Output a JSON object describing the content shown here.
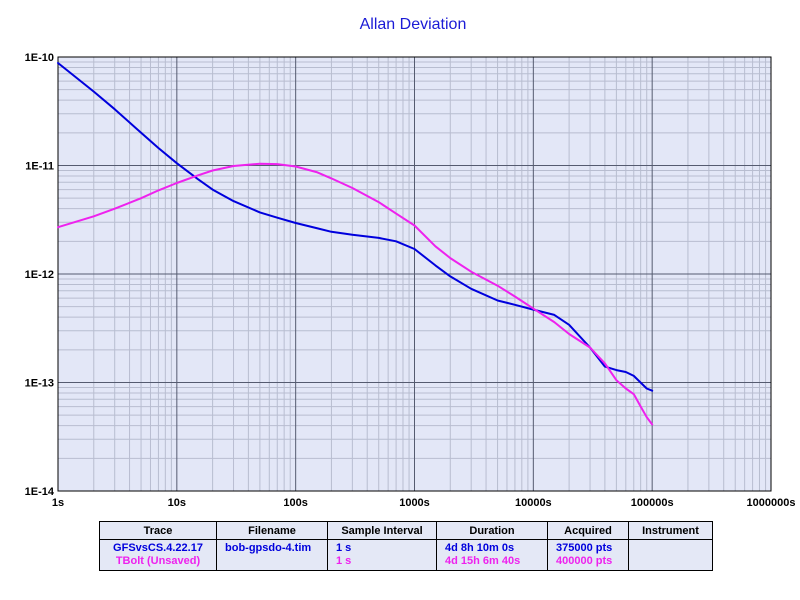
{
  "chart_data": {
    "type": "line",
    "title": "Allan Deviation",
    "xscale": "log",
    "yscale": "log",
    "xlim": [
      1,
      1000000
    ],
    "ylim": [
      1e-14,
      1e-10
    ],
    "grid": true,
    "x_tick_labels": [
      "1s",
      "10s",
      "100s",
      "1000s",
      "10000s",
      "100000s",
      "1000000s"
    ],
    "y_tick_labels": [
      "1E-14",
      "1E-13",
      "1E-12",
      "1E-11",
      "1E-10"
    ],
    "series": [
      {
        "name": "GFSvsCS.4.22.17",
        "color": "#0000dd",
        "x": [
          1,
          2,
          3,
          5,
          7,
          10,
          15,
          20,
          30,
          50,
          70,
          100,
          150,
          200,
          300,
          500,
          700,
          1000,
          1500,
          2000,
          3000,
          5000,
          7000,
          10000,
          15000,
          20000,
          30000,
          40000,
          50000,
          60000,
          70000,
          90000,
          100000
        ],
        "y": [
          8.8e-11,
          4.8e-11,
          3.3e-11,
          2e-11,
          1.45e-11,
          1.05e-11,
          7.5e-12,
          6e-12,
          4.7e-12,
          3.7e-12,
          3.3e-12,
          2.95e-12,
          2.65e-12,
          2.45e-12,
          2.3e-12,
          2.15e-12,
          2e-12,
          1.7e-12,
          1.2e-12,
          9.5e-13,
          7.3e-13,
          5.7e-13,
          5.2e-13,
          4.7e-13,
          4.2e-13,
          3.4e-13,
          2.1e-13,
          1.4e-13,
          1.3e-13,
          1.25e-13,
          1.15e-13,
          8.8e-14,
          8.4e-14
        ]
      },
      {
        "name": "TBolt (Unsaved)",
        "color": "#ee22ee",
        "x": [
          1,
          2,
          3,
          5,
          7,
          10,
          15,
          20,
          30,
          50,
          70,
          100,
          150,
          200,
          300,
          500,
          700,
          1000,
          1500,
          2000,
          3000,
          5000,
          7000,
          10000,
          15000,
          20000,
          30000,
          40000,
          50000,
          60000,
          70000,
          80000,
          90000,
          100000
        ],
        "y": [
          2.7e-12,
          3.4e-12,
          4e-12,
          5e-12,
          5.9e-12,
          6.9e-12,
          8.1e-12,
          9e-12,
          9.9e-12,
          1.04e-11,
          1.03e-11,
          9.8e-12,
          8.7e-12,
          7.6e-12,
          6.2e-12,
          4.6e-12,
          3.6e-12,
          2.8e-12,
          1.8e-12,
          1.4e-12,
          1.05e-12,
          7.8e-13,
          6.2e-13,
          4.8e-13,
          3.6e-13,
          2.8e-13,
          2.1e-13,
          1.5e-13,
          1.05e-13,
          8.8e-14,
          7.8e-14,
          6e-14,
          4.8e-14,
          4.1e-14
        ]
      }
    ]
  },
  "legend_table": {
    "headers": [
      "Trace",
      "Filename",
      "Sample Interval",
      "Duration",
      "Acquired",
      "Instrument"
    ],
    "rows": [
      {
        "trace": "GFSvsCS.4.22.17",
        "filename": "bob-gpsdo-4.tim",
        "interval": "1 s",
        "duration": "4d 8h 10m 0s",
        "acquired": "375000 pts",
        "instrument": "",
        "color": "#0000dd"
      },
      {
        "trace": "TBolt (Unsaved)",
        "filename": "",
        "interval": "1 s",
        "duration": "4d 15h 6m 40s",
        "acquired": "400000 pts",
        "instrument": "",
        "color": "#ee22ee"
      }
    ]
  }
}
